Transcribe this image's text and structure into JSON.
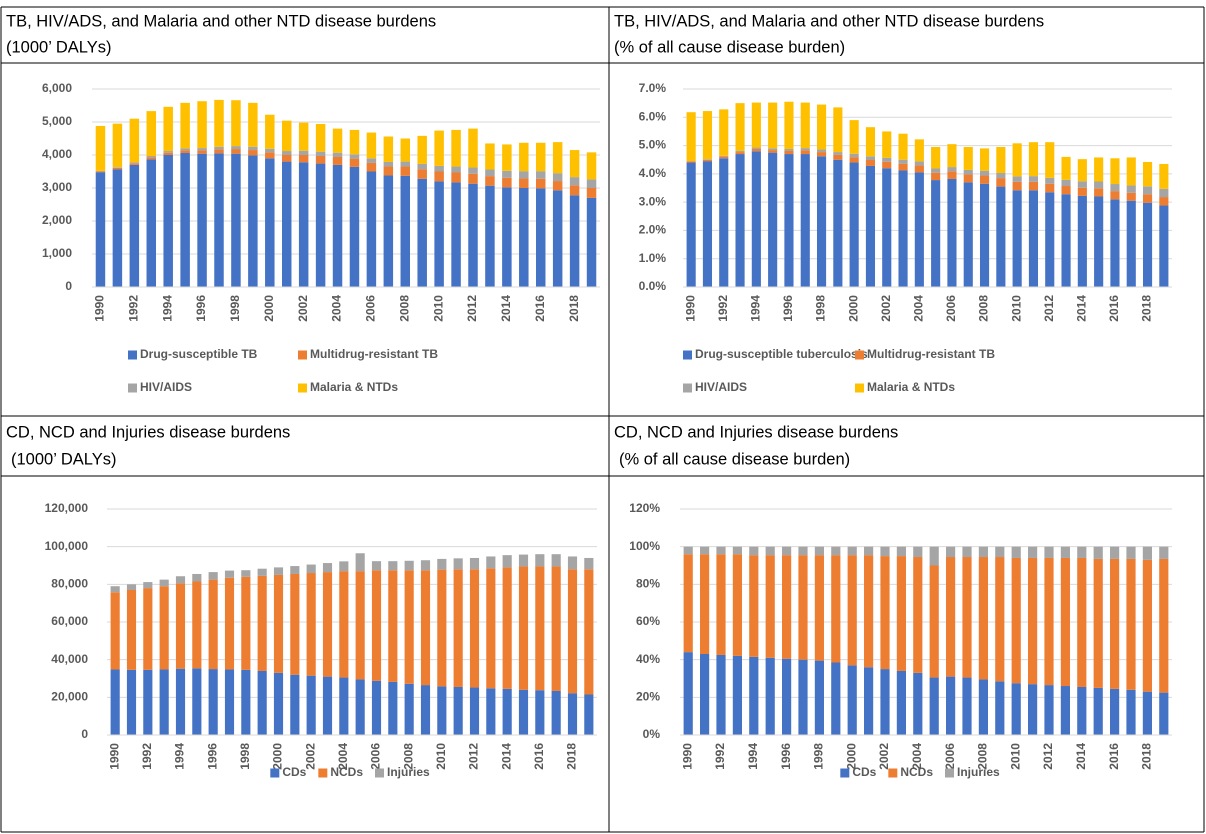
{
  "table": {
    "cells": [
      {
        "lines": [
          "TB, HIV/ADS, and Malaria and other NTD disease burdens",
          "(1000’ DALYs)"
        ]
      },
      {
        "lines": [
          "TB, HIV/ADS, and Malaria and other NTD disease burdens",
          "(% of all cause disease burden)"
        ]
      },
      {
        "lines": [
          "CD, NCD and Injuries disease burdens",
          "(1000’ DALYs)"
        ]
      },
      {
        "lines": [
          "CD, NCD and Injuries disease burdens",
          "(% of all cause disease burden)"
        ]
      }
    ]
  },
  "chart_data": [
    {
      "type": "stacked-bar",
      "grid": true,
      "categories": [
        "1990",
        null,
        "1992",
        null,
        "1994",
        null,
        "1996",
        null,
        "1998",
        null,
        "2000",
        null,
        "2002",
        null,
        "2004",
        null,
        "2006",
        null,
        "2008",
        null,
        "2010",
        null,
        "2012",
        null,
        "2014",
        null,
        "2016",
        null,
        "2018",
        null
      ],
      "ylim": [
        0,
        6000
      ],
      "yticks": [
        0,
        {
          "value": 1000,
          "label": "1,000"
        },
        {
          "value": 2000,
          "label": "2,000"
        },
        {
          "value": 3000,
          "label": "3,000"
        },
        {
          "value": 4000,
          "label": "4,000"
        },
        {
          "value": 5000,
          "label": "5,000"
        },
        {
          "value": 6000,
          "label": "6,000"
        }
      ],
      "series": [
        {
          "name": "Drug-susceptible TB",
          "color": "#4472c4",
          "values": [
            3480,
            3570,
            3700,
            3870,
            4000,
            4060,
            4040,
            4050,
            4040,
            3990,
            3900,
            3800,
            3780,
            3740,
            3700,
            3640,
            3500,
            3380,
            3370,
            3280,
            3200,
            3170,
            3130,
            3070,
            3020,
            3000,
            2990,
            2930,
            2780,
            2700
          ]
        },
        {
          "name": "Multidrug-resistant TB",
          "color": "#ed7d31",
          "values": [
            30,
            40,
            50,
            60,
            70,
            80,
            100,
            120,
            140,
            160,
            180,
            200,
            220,
            230,
            240,
            250,
            260,
            270,
            280,
            290,
            300,
            300,
            300,
            290,
            290,
            290,
            290,
            280,
            300,
            300
          ]
        },
        {
          "name": "HIV/AIDS",
          "color": "#a5a5a5",
          "values": [
            10,
            20,
            30,
            40,
            50,
            60,
            70,
            80,
            90,
            100,
            110,
            120,
            130,
            130,
            130,
            130,
            140,
            140,
            150,
            160,
            170,
            180,
            190,
            200,
            210,
            220,
            230,
            240,
            250,
            260
          ]
        },
        {
          "name": "Malaria & NTDs",
          "color": "#ffc000",
          "values": [
            1360,
            1320,
            1320,
            1360,
            1340,
            1380,
            1420,
            1420,
            1390,
            1330,
            1030,
            920,
            850,
            840,
            730,
            740,
            780,
            770,
            700,
            850,
            1070,
            1110,
            1180,
            790,
            800,
            860,
            860,
            940,
            820,
            820
          ]
        }
      ]
    },
    {
      "type": "stacked-bar",
      "grid": true,
      "categories": [
        "1990",
        null,
        "1992",
        null,
        "1994",
        null,
        "1996",
        null,
        "1998",
        null,
        "2000",
        null,
        "2002",
        null,
        "2004",
        null,
        "2006",
        null,
        "2008",
        null,
        "2010",
        null,
        "2012",
        null,
        "2014",
        null,
        "2016",
        null,
        "2018",
        null
      ],
      "ylim": [
        0,
        7
      ],
      "yticks": [
        {
          "value": 0,
          "label": "0.0%"
        },
        {
          "value": 1,
          "label": "1.0%"
        },
        {
          "value": 2,
          "label": "2.0%"
        },
        {
          "value": 3,
          "label": "3.0%"
        },
        {
          "value": 4,
          "label": "4.0%"
        },
        {
          "value": 5,
          "label": "5.0%"
        },
        {
          "value": 6,
          "label": "6.0%"
        },
        {
          "value": 7,
          "label": "7.0%"
        }
      ],
      "series": [
        {
          "name": "Drug-susceptible tuberculosis",
          "color": "#4472c4",
          "values": [
            4.4,
            4.45,
            4.55,
            4.7,
            4.8,
            4.75,
            4.7,
            4.7,
            4.62,
            4.5,
            4.4,
            4.28,
            4.2,
            4.12,
            4.05,
            3.78,
            3.82,
            3.7,
            3.65,
            3.55,
            3.42,
            3.42,
            3.35,
            3.28,
            3.22,
            3.2,
            3.1,
            3.05,
            2.98,
            2.88
          ]
        },
        {
          "name": "Multidrug-resistant TB",
          "color": "#ed7d31",
          "values": [
            0.04,
            0.05,
            0.06,
            0.07,
            0.08,
            0.09,
            0.11,
            0.13,
            0.15,
            0.17,
            0.19,
            0.21,
            0.23,
            0.24,
            0.25,
            0.26,
            0.27,
            0.28,
            0.29,
            0.3,
            0.3,
            0.3,
            0.3,
            0.29,
            0.29,
            0.29,
            0.29,
            0.28,
            0.3,
            0.3
          ]
        },
        {
          "name": "HIV/AIDS",
          "color": "#a5a5a5",
          "values": [
            0.01,
            0.02,
            0.03,
            0.04,
            0.05,
            0.06,
            0.07,
            0.08,
            0.09,
            0.1,
            0.12,
            0.13,
            0.14,
            0.14,
            0.14,
            0.15,
            0.15,
            0.16,
            0.17,
            0.18,
            0.19,
            0.2,
            0.21,
            0.22,
            0.23,
            0.24,
            0.25,
            0.26,
            0.28,
            0.29
          ]
        },
        {
          "name": "Malaria & NTDs",
          "color": "#ffc000",
          "values": [
            1.73,
            1.7,
            1.64,
            1.69,
            1.59,
            1.62,
            1.67,
            1.61,
            1.59,
            1.58,
            1.19,
            1.03,
            0.93,
            0.92,
            0.78,
            0.76,
            0.81,
            0.81,
            0.79,
            0.92,
            1.17,
            1.2,
            1.26,
            0.81,
            0.78,
            0.85,
            0.91,
            0.99,
            0.86,
            0.88
          ]
        }
      ]
    },
    {
      "type": "stacked-bar",
      "grid": true,
      "categories": [
        "1990",
        null,
        "1992",
        null,
        "1994",
        null,
        "1996",
        null,
        "1998",
        null,
        "2000",
        null,
        "2002",
        null,
        "2004",
        null,
        "2006",
        null,
        "2008",
        null,
        "2010",
        null,
        "2012",
        null,
        "2014",
        null,
        "2016",
        null,
        "2018",
        null
      ],
      "ylim": [
        0,
        120000
      ],
      "yticks": [
        0,
        {
          "value": 20000,
          "label": "20,000"
        },
        {
          "value": 40000,
          "label": "40,000"
        },
        {
          "value": 60000,
          "label": "60,000"
        },
        {
          "value": 80000,
          "label": "80,000"
        },
        {
          "value": 100000,
          "label": "100,000"
        },
        {
          "value": 120000,
          "label": "120,000"
        }
      ],
      "series": [
        {
          "name": "CDs",
          "color": "#4472c4",
          "values": [
            34800,
            34600,
            34600,
            34800,
            35200,
            35400,
            35000,
            34800,
            34600,
            34000,
            33000,
            32000,
            31500,
            31000,
            30500,
            29500,
            28800,
            28200,
            27200,
            26500,
            25800,
            25500,
            25200,
            24800,
            24500,
            24000,
            23800,
            23400,
            22200,
            21500
          ]
        },
        {
          "name": "NCDs",
          "color": "#ed7d31",
          "values": [
            41000,
            42400,
            43400,
            44200,
            45300,
            46100,
            47500,
            48700,
            49400,
            50500,
            52000,
            53500,
            54500,
            55500,
            56500,
            57500,
            58700,
            59300,
            60300,
            61000,
            62000,
            62500,
            62800,
            63700,
            64500,
            65500,
            65700,
            66100,
            65800,
            66500
          ]
        },
        {
          "name": "Injuries",
          "color": "#a5a5a5",
          "values": [
            3200,
            3000,
            3200,
            3500,
            3800,
            4000,
            4000,
            3800,
            3500,
            3800,
            4000,
            4200,
            4500,
            4800,
            5200,
            9500,
            4800,
            4800,
            5000,
            5300,
            5700,
            5800,
            6000,
            6300,
            6500,
            6300,
            6500,
            6500,
            6800,
            6000
          ]
        }
      ]
    },
    {
      "type": "stacked-bar",
      "grid": true,
      "categories": [
        "1990",
        null,
        "1992",
        null,
        "1994",
        null,
        "1996",
        null,
        "1998",
        null,
        "2000",
        null,
        "2002",
        null,
        "2004",
        null,
        "2006",
        null,
        "2008",
        null,
        "2010",
        null,
        "2012",
        null,
        "2014",
        null,
        "2016",
        null,
        "2018",
        null
      ],
      "ylim": [
        0,
        120
      ],
      "yticks": [
        {
          "value": 0,
          "label": "0%"
        },
        {
          "value": 20,
          "label": "20%"
        },
        {
          "value": 40,
          "label": "40%"
        },
        {
          "value": 60,
          "label": "60%"
        },
        {
          "value": 80,
          "label": "80%"
        },
        {
          "value": 100,
          "label": "100%"
        },
        {
          "value": 120,
          "label": "120%"
        }
      ],
      "series": [
        {
          "name": "CDs",
          "color": "#4472c4",
          "values": [
            44,
            43,
            42.5,
            42,
            41.5,
            41,
            40.5,
            40,
            39.5,
            38.5,
            37,
            36,
            35,
            34,
            33,
            30.5,
            31,
            30.5,
            29.5,
            28.5,
            27.5,
            27,
            26.5,
            26,
            25.5,
            25,
            24.5,
            24,
            23,
            22.5
          ]
        },
        {
          "name": "NCDs",
          "color": "#ed7d31",
          "values": [
            52,
            53,
            53.5,
            54,
            54,
            54.5,
            55,
            55.5,
            56,
            57,
            58.5,
            59.5,
            60,
            61,
            61.5,
            59.5,
            63.5,
            64,
            65,
            66,
            66.5,
            67,
            67.5,
            68,
            68.5,
            68.5,
            69,
            69.5,
            70,
            71
          ]
        },
        {
          "name": "Injuries",
          "color": "#a5a5a5",
          "values": [
            4,
            4,
            4,
            4,
            4.5,
            4.5,
            4.5,
            4.5,
            4.5,
            4.5,
            4.5,
            4.5,
            5,
            5,
            5.5,
            10,
            5.5,
            5.5,
            5.5,
            5.5,
            6,
            6,
            6,
            6,
            6,
            6.5,
            6.5,
            6.5,
            7,
            6.5
          ]
        }
      ]
    }
  ]
}
